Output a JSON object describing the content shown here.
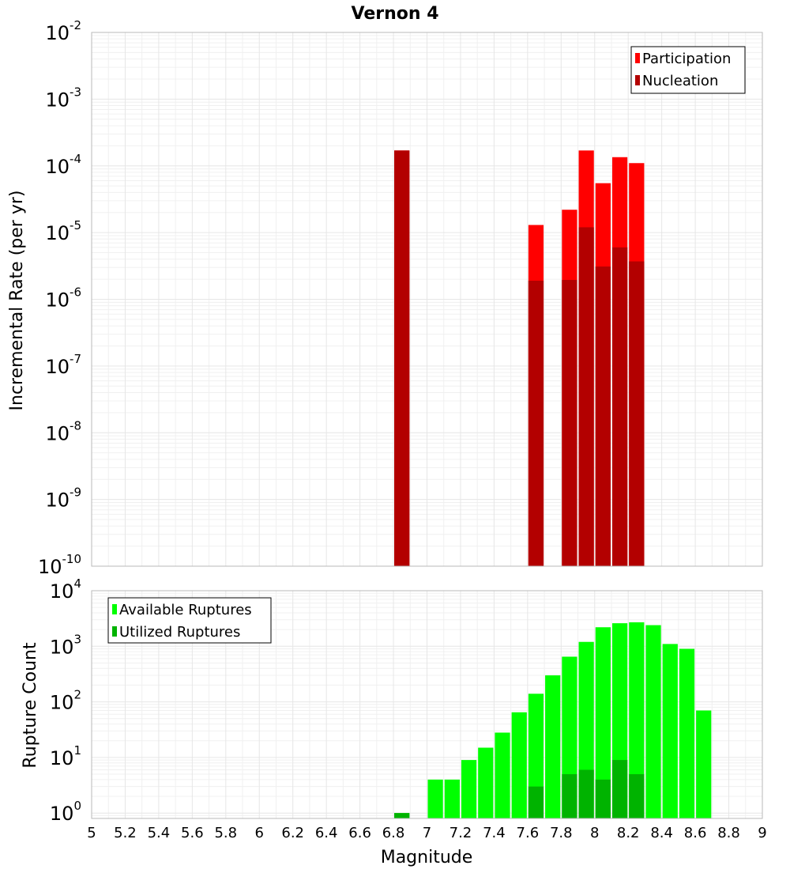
{
  "chart_data": [
    {
      "type": "bar",
      "title": "Vernon 4",
      "xlabel": "",
      "ylabel": "Incremental Rate (per yr)",
      "y_scale": "log",
      "ylim": [
        1e-10,
        0.01
      ],
      "xlim": [
        5,
        9
      ],
      "bar_width": 0.1,
      "grid": true,
      "legend_position": "top-right",
      "y_tick_labels": [
        {
          "base": "10",
          "exp": "-10",
          "value": 1e-10
        },
        {
          "base": "10",
          "exp": "-9",
          "value": 1e-09
        },
        {
          "base": "10",
          "exp": "-8",
          "value": 1e-08
        },
        {
          "base": "10",
          "exp": "-7",
          "value": 1e-07
        },
        {
          "base": "10",
          "exp": "-6",
          "value": 1e-06
        },
        {
          "base": "10",
          "exp": "-5",
          "value": 1e-05
        },
        {
          "base": "10",
          "exp": "-4",
          "value": 0.0001
        },
        {
          "base": "10",
          "exp": "-3",
          "value": 0.001
        },
        {
          "base": "10",
          "exp": "-2",
          "value": 0.01
        }
      ],
      "series": [
        {
          "name": "Participation",
          "color": "#ff0000",
          "points": [
            {
              "x": 6.85,
              "y": 0.00017
            },
            {
              "x": 7.65,
              "y": 1.3e-05
            },
            {
              "x": 7.85,
              "y": 2.2e-05
            },
            {
              "x": 7.95,
              "y": 0.00017
            },
            {
              "x": 8.05,
              "y": 5.5e-05
            },
            {
              "x": 8.15,
              "y": 0.000135
            },
            {
              "x": 8.25,
              "y": 0.00011
            }
          ]
        },
        {
          "name": "Nucleation",
          "color": "#b30000",
          "points": [
            {
              "x": 6.85,
              "y": 0.00017
            },
            {
              "x": 7.65,
              "y": 1.9e-06
            },
            {
              "x": 7.85,
              "y": 1.95e-06
            },
            {
              "x": 7.95,
              "y": 1.2e-05
            },
            {
              "x": 8.05,
              "y": 3.1e-06
            },
            {
              "x": 8.15,
              "y": 6e-06
            },
            {
              "x": 8.25,
              "y": 3.7e-06
            }
          ]
        }
      ]
    },
    {
      "type": "bar",
      "title": "",
      "xlabel": "Magnitude",
      "ylabel": "Rupture Count",
      "y_scale": "log",
      "ylim": [
        0.8,
        10000.0
      ],
      "xlim": [
        5,
        9
      ],
      "bar_width": 0.1,
      "grid": true,
      "legend_position": "top-left",
      "x_tick_labels": [
        "5",
        "5.2",
        "5.4",
        "5.6",
        "5.8",
        "6",
        "6.2",
        "6.4",
        "6.6",
        "6.8",
        "7",
        "7.2",
        "7.4",
        "7.6",
        "7.8",
        "8",
        "8.2",
        "8.4",
        "8.6",
        "8.8",
        "9"
      ],
      "y_tick_labels": [
        {
          "base": "10",
          "exp": "0",
          "value": 1
        },
        {
          "base": "10",
          "exp": "1",
          "value": 10
        },
        {
          "base": "10",
          "exp": "2",
          "value": 100
        },
        {
          "base": "10",
          "exp": "3",
          "value": 1000
        },
        {
          "base": "10",
          "exp": "4",
          "value": 10000
        }
      ],
      "series": [
        {
          "name": "Available Ruptures",
          "color": "#00ff00",
          "points": [
            {
              "x": 6.85,
              "y": 1
            },
            {
              "x": 7.05,
              "y": 4
            },
            {
              "x": 7.15,
              "y": 4
            },
            {
              "x": 7.25,
              "y": 9
            },
            {
              "x": 7.35,
              "y": 15
            },
            {
              "x": 7.45,
              "y": 28
            },
            {
              "x": 7.55,
              "y": 65
            },
            {
              "x": 7.65,
              "y": 140
            },
            {
              "x": 7.75,
              "y": 300
            },
            {
              "x": 7.85,
              "y": 650
            },
            {
              "x": 7.95,
              "y": 1200
            },
            {
              "x": 8.05,
              "y": 2200
            },
            {
              "x": 8.15,
              "y": 2600
            },
            {
              "x": 8.25,
              "y": 2700
            },
            {
              "x": 8.35,
              "y": 2400
            },
            {
              "x": 8.45,
              "y": 1100
            },
            {
              "x": 8.55,
              "y": 900
            },
            {
              "x": 8.65,
              "y": 70
            }
          ]
        },
        {
          "name": "Utilized Ruptures",
          "color": "#00b300",
          "points": [
            {
              "x": 6.85,
              "y": 1
            },
            {
              "x": 7.65,
              "y": 3
            },
            {
              "x": 7.85,
              "y": 5
            },
            {
              "x": 7.95,
              "y": 6
            },
            {
              "x": 8.05,
              "y": 4
            },
            {
              "x": 8.15,
              "y": 9
            },
            {
              "x": 8.25,
              "y": 5
            }
          ]
        }
      ]
    }
  ]
}
